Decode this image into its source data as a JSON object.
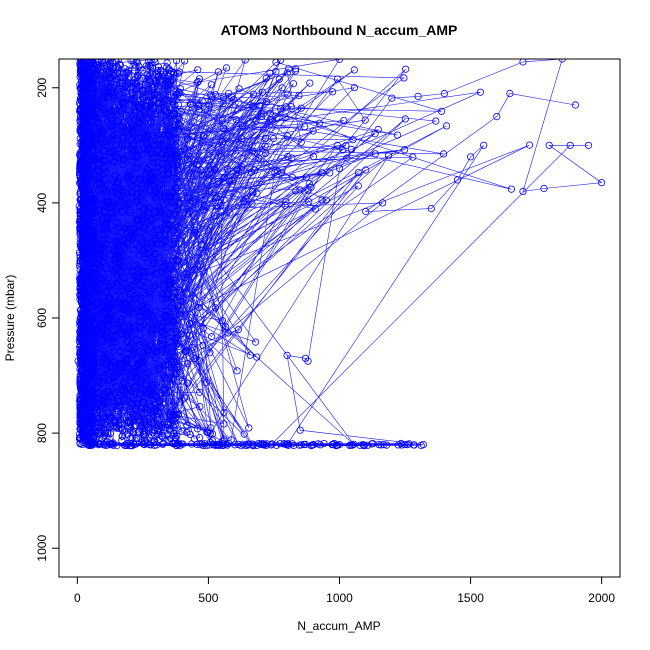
{
  "chart_data": {
    "type": "scatter",
    "title": "ATOM3 Northbound N_accum_AMP",
    "xlabel": "N_accum_AMP",
    "ylabel": "Pressure (mbar)",
    "xlim": [
      -70,
      2070
    ],
    "ylim": [
      1050,
      150
    ],
    "y_reversed": true,
    "x_ticks": [
      0,
      500,
      1000,
      1500,
      2000
    ],
    "y_ticks": [
      200,
      400,
      600,
      800,
      1000
    ],
    "x_tick_labels": [
      "0",
      "500",
      "1000",
      "1500",
      "2000"
    ],
    "y_tick_labels": [
      "200",
      "400",
      "600",
      "800",
      "1000"
    ],
    "grid": false,
    "point_style": "open-circle-with-connecting-line",
    "series_color": "#0000ff",
    "density_profile": [
      {
        "p": 150,
        "xmax": 1500
      },
      {
        "p": 200,
        "xmax": 1800
      },
      {
        "p": 220,
        "xmax": 1300
      },
      {
        "p": 260,
        "xmax": 1500
      },
      {
        "p": 300,
        "xmax": 1950
      },
      {
        "p": 340,
        "xmax": 1000
      },
      {
        "p": 365,
        "xmax": 2000
      },
      {
        "p": 400,
        "xmax": 1500
      },
      {
        "p": 420,
        "xmax": 700
      },
      {
        "p": 460,
        "xmax": 500
      },
      {
        "p": 520,
        "xmax": 450
      },
      {
        "p": 560,
        "xmax": 450
      },
      {
        "p": 600,
        "xmax": 600
      },
      {
        "p": 630,
        "xmax": 650
      },
      {
        "p": 660,
        "xmax": 880
      },
      {
        "p": 700,
        "xmax": 550
      },
      {
        "p": 740,
        "xmax": 500
      },
      {
        "p": 770,
        "xmax": 600
      },
      {
        "p": 800,
        "xmax": 850
      },
      {
        "p": 820,
        "xmax": 1320
      }
    ],
    "highlight_points": [
      {
        "x": 1880,
        "y": 300
      },
      {
        "x": 1950,
        "y": 300
      },
      {
        "x": 1800,
        "y": 300
      },
      {
        "x": 2000,
        "y": 365
      },
      {
        "x": 1780,
        "y": 375
      },
      {
        "x": 1700,
        "y": 380
      },
      {
        "x": 1850,
        "y": 150
      },
      {
        "x": 1700,
        "y": 155
      },
      {
        "x": 1400,
        "y": 210
      },
      {
        "x": 1300,
        "y": 215
      },
      {
        "x": 1200,
        "y": 218
      },
      {
        "x": 1000,
        "y": 340
      },
      {
        "x": 880,
        "y": 675
      },
      {
        "x": 870,
        "y": 670
      },
      {
        "x": 800,
        "y": 665
      },
      {
        "x": 850,
        "y": 795
      },
      {
        "x": 1320,
        "y": 820
      },
      {
        "x": 1250,
        "y": 820
      },
      {
        "x": 1150,
        "y": 820
      },
      {
        "x": 1000,
        "y": 820
      },
      {
        "x": 900,
        "y": 820
      },
      {
        "x": 800,
        "y": 820
      },
      {
        "x": 1550,
        "y": 300
      },
      {
        "x": 1500,
        "y": 320
      },
      {
        "x": 1450,
        "y": 360
      },
      {
        "x": 1350,
        "y": 410
      },
      {
        "x": 1100,
        "y": 415
      },
      {
        "x": 1600,
        "y": 250
      },
      {
        "x": 1650,
        "y": 210
      },
      {
        "x": 1900,
        "y": 230
      }
    ]
  }
}
